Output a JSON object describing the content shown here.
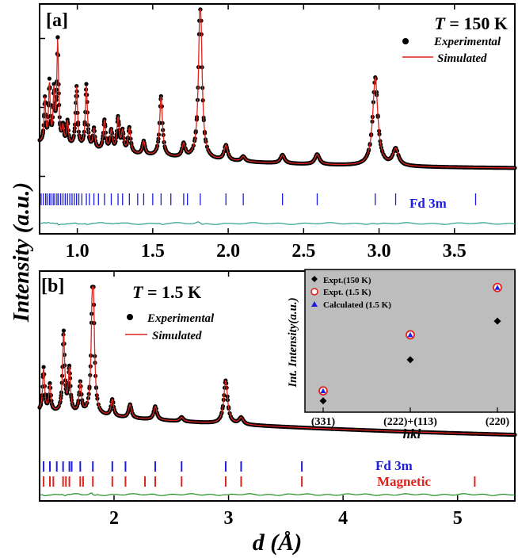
{
  "figure": {
    "y_axis_label": "Intensity (a.u.)",
    "x_axis_label_symbol": "d",
    "x_axis_label_unit": "(Å)"
  },
  "chart_data": [
    {
      "type": "line",
      "panel_label": "[a]",
      "temperature_label_symbol": "T",
      "temperature_label_value": " = 150 K",
      "xlim": [
        0.75,
        3.9
      ],
      "x_ticks": [
        1.0,
        1.5,
        2.0,
        2.5,
        3.0,
        3.5
      ],
      "x_tick_labels": [
        "1.0",
        "1.5",
        "2.0",
        "2.5",
        "3.0",
        "3.5"
      ],
      "y_ticks_fraction": [
        0.15,
        0.45,
        0.75
      ],
      "legend": {
        "experimental": "Experimental",
        "simulated": "Simulated",
        "position": "top-right"
      },
      "series": [
        {
          "name": "Experimental",
          "style": "black-dots",
          "color": "#000000"
        },
        {
          "name": "Simulated",
          "style": "line",
          "color": "#e0231b"
        }
      ],
      "peaks": [
        {
          "d": 0.785,
          "height": 0.26,
          "width": 0.006
        },
        {
          "d": 0.815,
          "height": 0.36,
          "width": 0.006
        },
        {
          "d": 0.845,
          "height": 0.3,
          "width": 0.006
        },
        {
          "d": 0.87,
          "height": 0.62,
          "width": 0.007
        },
        {
          "d": 0.905,
          "height": 0.1,
          "width": 0.007
        },
        {
          "d": 0.935,
          "height": 0.14,
          "width": 0.007
        },
        {
          "d": 0.995,
          "height": 0.36,
          "width": 0.008
        },
        {
          "d": 1.06,
          "height": 0.38,
          "width": 0.008
        },
        {
          "d": 1.11,
          "height": 0.12,
          "width": 0.008
        },
        {
          "d": 1.18,
          "height": 0.18,
          "width": 0.009
        },
        {
          "d": 1.225,
          "height": 0.12,
          "width": 0.009
        },
        {
          "d": 1.27,
          "height": 0.2,
          "width": 0.009
        },
        {
          "d": 1.3,
          "height": 0.12,
          "width": 0.009
        },
        {
          "d": 1.345,
          "height": 0.15,
          "width": 0.01
        },
        {
          "d": 1.44,
          "height": 0.08,
          "width": 0.01
        },
        {
          "d": 1.555,
          "height": 0.36,
          "width": 0.011
        },
        {
          "d": 1.705,
          "height": 0.08,
          "width": 0.012
        },
        {
          "d": 1.815,
          "height": 1.0,
          "width": 0.013
        },
        {
          "d": 1.985,
          "height": 0.09,
          "width": 0.014
        },
        {
          "d": 2.1,
          "height": 0.03,
          "width": 0.015
        },
        {
          "d": 2.36,
          "height": 0.05,
          "width": 0.016
        },
        {
          "d": 2.59,
          "height": 0.06,
          "width": 0.018
        },
        {
          "d": 2.975,
          "height": 0.53,
          "width": 0.02
        },
        {
          "d": 3.11,
          "height": 0.1,
          "width": 0.022
        }
      ],
      "baseline": {
        "start": 0.2,
        "end": 0.04,
        "decay": 3.0
      },
      "bragg_label": "Fd 3m",
      "bragg_color": "#1d1de0",
      "bragg_positions": [
        0.76,
        0.775,
        0.79,
        0.8,
        0.815,
        0.825,
        0.84,
        0.85,
        0.865,
        0.875,
        0.89,
        0.905,
        0.92,
        0.935,
        0.95,
        0.965,
        0.98,
        0.995,
        1.01,
        1.03,
        1.06,
        1.08,
        1.11,
        1.14,
        1.18,
        1.225,
        1.27,
        1.3,
        1.345,
        1.4,
        1.44,
        1.5,
        1.555,
        1.62,
        1.705,
        1.73,
        1.815,
        1.985,
        2.1,
        2.36,
        2.59,
        2.975,
        3.11,
        3.64
      ],
      "difference_color": "#2aa088"
    },
    {
      "type": "line",
      "panel_label": "[b]",
      "temperature_label_symbol": "T",
      "temperature_label_value": " = 1.5 K",
      "xlim": [
        1.35,
        5.5
      ],
      "x_ticks": [
        2,
        3,
        4,
        5
      ],
      "x_tick_labels": [
        "2",
        "3",
        "4",
        "5"
      ],
      "legend": {
        "experimental": "Experimental",
        "simulated": "Simulated",
        "position": "top-left"
      },
      "series": [
        {
          "name": "Experimental",
          "style": "black-dots",
          "color": "#000000"
        },
        {
          "name": "Simulated",
          "style": "line",
          "color": "#e0231b"
        }
      ],
      "peaks": [
        {
          "d": 1.385,
          "height": 0.26,
          "width": 0.01
        },
        {
          "d": 1.44,
          "height": 0.16,
          "width": 0.01
        },
        {
          "d": 1.56,
          "height": 0.48,
          "width": 0.011
        },
        {
          "d": 1.61,
          "height": 0.26,
          "width": 0.011
        },
        {
          "d": 1.705,
          "height": 0.18,
          "width": 0.012
        },
        {
          "d": 1.815,
          "height": 1.0,
          "width": 0.013
        },
        {
          "d": 1.985,
          "height": 0.1,
          "width": 0.014
        },
        {
          "d": 2.14,
          "height": 0.08,
          "width": 0.015
        },
        {
          "d": 2.36,
          "height": 0.08,
          "width": 0.016
        },
        {
          "d": 2.59,
          "height": 0.025,
          "width": 0.018
        },
        {
          "d": 2.975,
          "height": 0.26,
          "width": 0.02
        },
        {
          "d": 3.11,
          "height": 0.04,
          "width": 0.022
        }
      ],
      "baseline": {
        "start": 0.28,
        "end": 0.08,
        "decay": 1.2
      },
      "bragg_rows": [
        {
          "label": "Fd 3m",
          "color": "#1d1de0",
          "positions": [
            1.385,
            1.44,
            1.5,
            1.555,
            1.61,
            1.63,
            1.705,
            1.815,
            1.985,
            2.1,
            2.36,
            2.59,
            2.975,
            3.11,
            3.64
          ]
        },
        {
          "label": "Magnetic",
          "color": "#e0231b",
          "positions": [
            1.385,
            1.44,
            1.47,
            1.555,
            1.58,
            1.61,
            1.705,
            1.73,
            1.815,
            1.985,
            2.1,
            2.27,
            2.36,
            2.59,
            2.975,
            3.11,
            3.64,
            5.15
          ]
        }
      ],
      "difference_color": "#1e8a1e"
    },
    {
      "type": "scatter",
      "inset": true,
      "ylabel": "Int. Intensity(a.u.)",
      "xlabel": "hkl",
      "categories": [
        "(331)",
        "(222)+(113)",
        "(220)"
      ],
      "background": "#bdbdbd",
      "legend": [
        "Expt.(150 K)",
        "Expt. (1.5 K)",
        "Calculated (1.5 K)"
      ],
      "series": [
        {
          "name": "Expt.(150 K)",
          "marker": "diamond",
          "color": "#000000",
          "values": [
            0.04,
            0.37,
            0.68
          ]
        },
        {
          "name": "Expt. (1.5 K)",
          "marker": "open-circle",
          "color": "#e0231b",
          "values": [
            0.12,
            0.57,
            0.95
          ]
        },
        {
          "name": "Calculated (1.5 K)",
          "marker": "triangle",
          "color": "#1d1de0",
          "values": [
            0.12,
            0.57,
            0.95
          ]
        }
      ],
      "ylim": [
        0,
        1.05
      ]
    }
  ]
}
